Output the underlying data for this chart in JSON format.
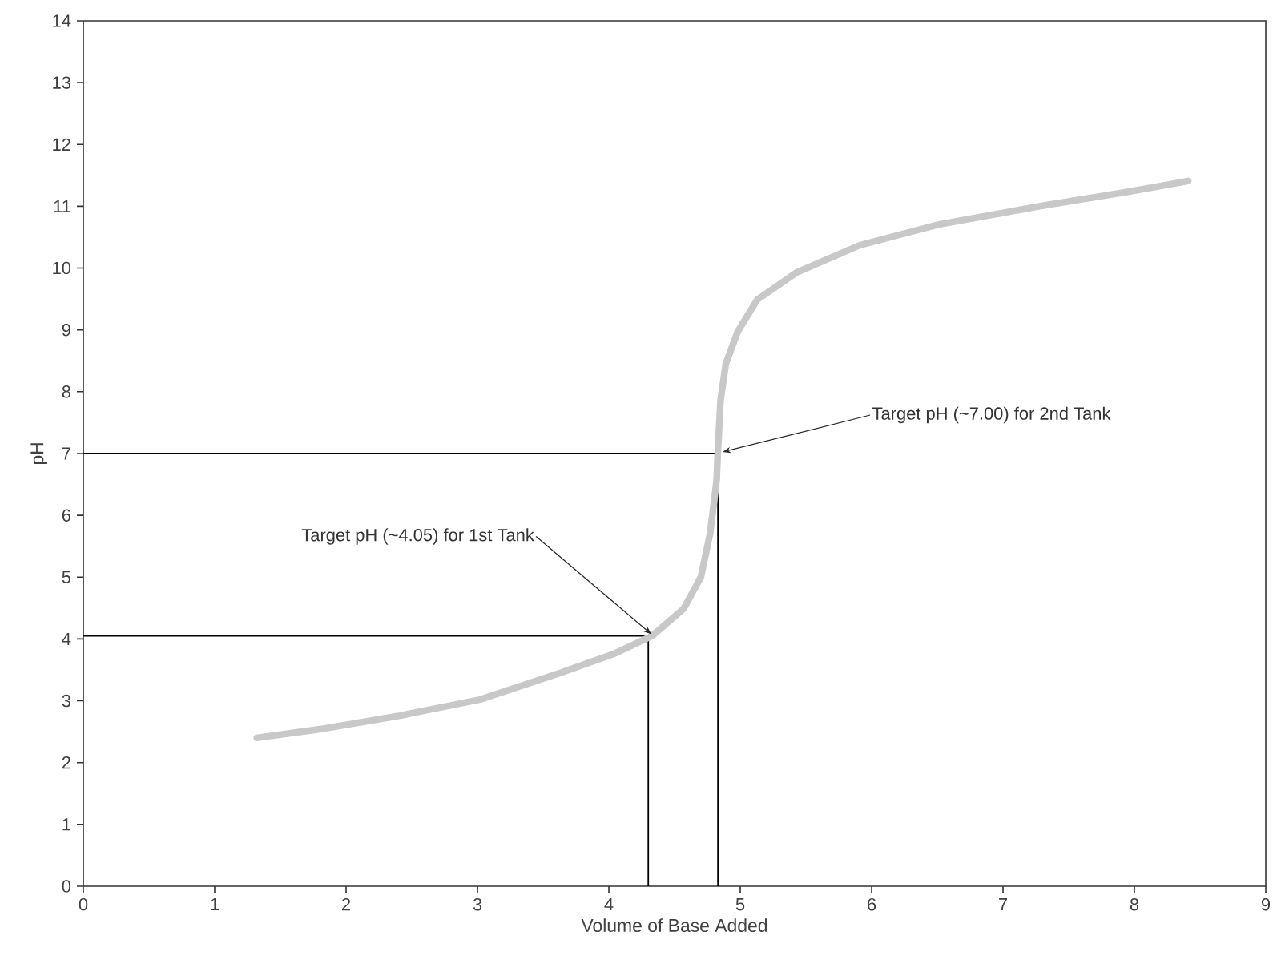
{
  "chart_data": {
    "type": "line",
    "xlabel": "Volume of Base Added",
    "ylabel": "pH",
    "xlim": [
      0,
      9
    ],
    "ylim": [
      0,
      14
    ],
    "xticks": [
      0,
      1,
      2,
      3,
      4,
      5,
      6,
      7,
      8,
      9
    ],
    "yticks": [
      0,
      1,
      2,
      3,
      4,
      5,
      6,
      7,
      8,
      9,
      10,
      11,
      12,
      13,
      14
    ],
    "marker": "none",
    "line_style": "solid",
    "series": [
      {
        "color": "#c8c8c8",
        "x": [
          1.32,
          1.8,
          2.41,
          3.02,
          3.63,
          4.04,
          4.33,
          4.57,
          4.7,
          4.77,
          4.82,
          4.83,
          4.85,
          4.89,
          4.98,
          5.13,
          5.43,
          5.91,
          6.52,
          7.33,
          7.94,
          8.41
        ],
        "values": [
          2.4,
          2.54,
          2.76,
          3.02,
          3.45,
          3.76,
          4.05,
          4.49,
          5.0,
          5.7,
          6.56,
          7.05,
          7.86,
          8.45,
          8.97,
          9.49,
          9.93,
          10.37,
          10.71,
          11.02,
          11.23,
          11.41
        ]
      },
      {
        "color": "#000000",
        "x": [
          0,
          4.3,
          4.3
        ],
        "values": [
          4.05,
          4.05,
          0
        ]
      },
      {
        "color": "#000000",
        "x": [
          0,
          4.83,
          4.83
        ],
        "values": [
          7.0,
          7.0,
          0
        ]
      }
    ],
    "annotations": [
      {
        "text": "Target pH (~4.05) for 1st Tank",
        "x": 4.3,
        "y": 4.05
      },
      {
        "text": "Target pH (~7.00) for 2nd Tank",
        "x": 4.83,
        "y": 7.0
      }
    ]
  }
}
